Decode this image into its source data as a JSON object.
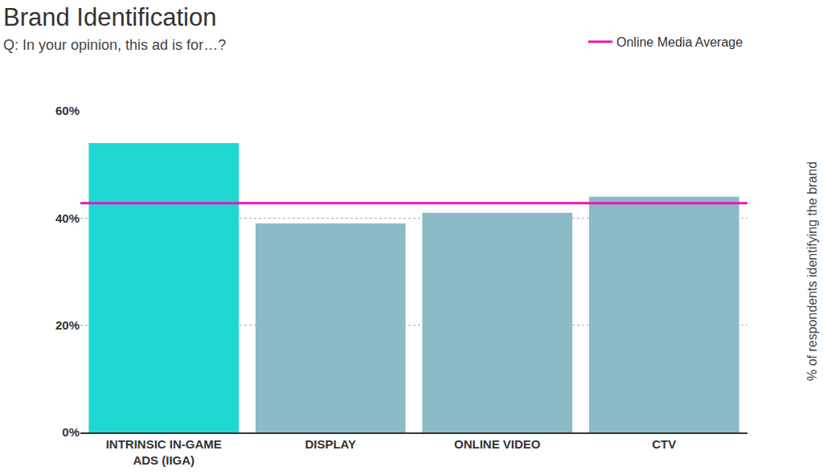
{
  "chart_data": {
    "type": "bar",
    "title": "Brand Identification",
    "subtitle": "Q: In your opinion, this ad is for…?",
    "y_label": "% of respondents identifying the brand",
    "categories": [
      "INTRINSIC IN-GAME ADS (IIGA)",
      "DISPLAY",
      "ONLINE VIDEO",
      "CTV"
    ],
    "values": [
      54,
      39,
      41,
      44
    ],
    "colors": [
      "#1fd8d2",
      "#8cbac6",
      "#8cbac6",
      "#8cbac6"
    ],
    "ylim": [
      0,
      60
    ],
    "yticks": [
      {
        "value": 0,
        "label": "0%"
      },
      {
        "value": 20,
        "label": "20%"
      },
      {
        "value": 40,
        "label": "40%"
      },
      {
        "value": 60,
        "label": "60%"
      }
    ],
    "grid": true,
    "legend": "upper right",
    "reference_line": {
      "name": "Online Media Average",
      "value": 42.8,
      "color": "#f012be"
    }
  }
}
